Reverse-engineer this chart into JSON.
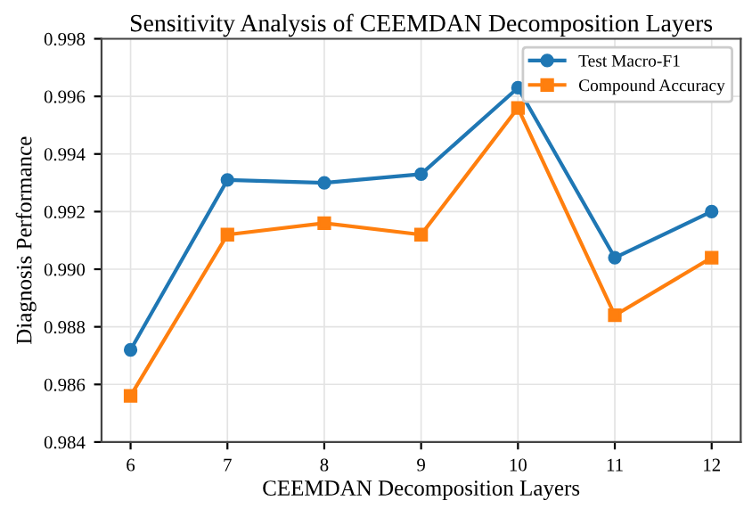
{
  "chart_data": {
    "type": "line",
    "title": "Sensitivity Analysis of CEEMDAN Decomposition Layers",
    "xlabel": "CEEMDAN Decomposition Layers",
    "ylabel": "Diagnosis Performance",
    "x": [
      6,
      7,
      8,
      9,
      10,
      11,
      12
    ],
    "series": [
      {
        "name": "Test Macro-F1",
        "color": "#1f77b4",
        "marker": "circle",
        "values": [
          0.9872,
          0.9931,
          0.993,
          0.9933,
          0.9963,
          0.9904,
          0.992
        ]
      },
      {
        "name": "Compound Accuracy",
        "color": "#ff7f0e",
        "marker": "square",
        "values": [
          0.9856,
          0.9912,
          0.9916,
          0.9912,
          0.9956,
          0.9884,
          0.9904
        ]
      }
    ],
    "xlim": [
      5.7,
      12.3
    ],
    "xticks": [
      6,
      7,
      8,
      9,
      10,
      11,
      12
    ],
    "ylim": [
      0.984,
      0.998
    ],
    "yticks": [
      {
        "value": 0.984,
        "label": "0.984"
      },
      {
        "value": 0.986,
        "label": "0.986"
      },
      {
        "value": 0.988,
        "label": "0.988"
      },
      {
        "value": 0.99,
        "label": "0.990"
      },
      {
        "value": 0.992,
        "label": "0.992"
      },
      {
        "value": 0.994,
        "label": "0.994"
      },
      {
        "value": 0.996,
        "label": "0.996"
      },
      {
        "value": 0.998,
        "label": "0.998"
      }
    ],
    "grid": true,
    "legend": "top right",
    "line_style": "solid"
  }
}
